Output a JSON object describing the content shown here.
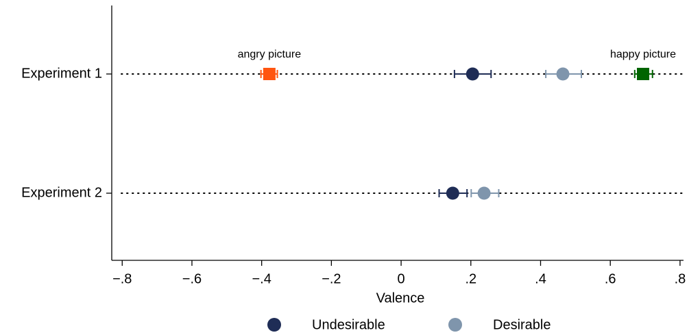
{
  "chart_data": {
    "type": "dot",
    "xlabel": "Valence",
    "categories": [
      "Experiment 1",
      "Experiment 2"
    ],
    "xlim": [
      -0.83,
      0.81
    ],
    "xticks": [
      {
        "value": -0.8,
        "label": "−.8"
      },
      {
        "value": -0.6,
        "label": "−.6"
      },
      {
        "value": -0.4,
        "label": "−.4"
      },
      {
        "value": -0.2,
        "label": "−.2"
      },
      0,
      {
        "value": 0.2,
        "label": ".2"
      },
      {
        "value": 0.4,
        "label": ".4"
      },
      {
        "value": 0.6,
        "label": ".6"
      },
      {
        "value": 0.8,
        "label": ".8"
      }
    ],
    "grid": "dotted",
    "series": [
      {
        "name": "Undesirable",
        "color": "#1f2d56",
        "marker": "circle",
        "label_position": "legend",
        "values": [
          0.205,
          0.148
        ],
        "ci_low": [
          0.153,
          0.109
        ],
        "ci_high": [
          0.258,
          0.189
        ]
      },
      {
        "name": "Desirable",
        "color": "#7f95ac",
        "marker": "circle",
        "label_position": "legend",
        "values": [
          0.464,
          0.238
        ],
        "ci_low": [
          0.415,
          0.201
        ],
        "ci_high": [
          0.517,
          0.28
        ]
      },
      {
        "name": "angry picture",
        "color": "#ff5510",
        "marker": "square",
        "label_position": "above",
        "values": [
          -0.378,
          null
        ],
        "ci_low": [
          -0.402,
          null
        ],
        "ci_high": [
          -0.355,
          null
        ]
      },
      {
        "name": "happy picture",
        "color": "#006400",
        "marker": "square",
        "label_position": "above",
        "values": [
          0.694,
          null
        ],
        "ci_low": [
          0.67,
          null
        ],
        "ci_high": [
          0.721,
          null
        ]
      }
    ]
  }
}
